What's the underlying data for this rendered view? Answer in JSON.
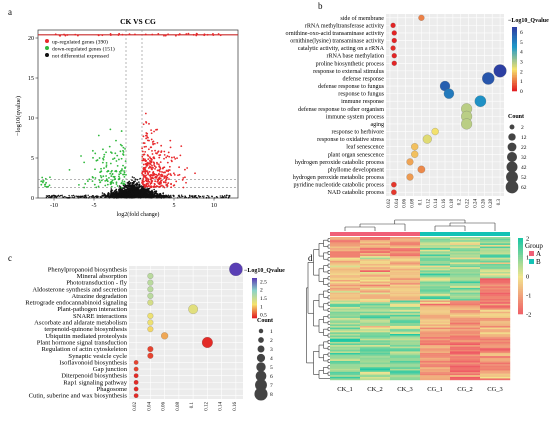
{
  "panel_labels": {
    "a": "a",
    "b": "b",
    "c": "c",
    "d": "d"
  },
  "colors": {
    "up": "#e8282b",
    "down": "#2fb83c",
    "ns": "#111111",
    "low": "#e1121e",
    "mid": "#f5e26b",
    "high_b": "#2c3fa3",
    "high_c": "#5a3fb5",
    "mid_c": "#8ad3c8",
    "heat_low": "#ef5b65",
    "heat_mid": "#f2e58e",
    "heat_high": "#1bc7a5",
    "group_a": "#f05f77",
    "group_b": "#13c2b5"
  },
  "chart_data": [
    {
      "id": "a",
      "type": "scatter",
      "title": "CK VS CG",
      "xlabel": "log2(fold change)",
      "ylabel": "−log10(qvalue)",
      "xlim": [
        -12,
        13
      ],
      "ylim": [
        0,
        21
      ],
      "xticks": [
        -10,
        -5,
        5,
        10
      ],
      "yticks": [
        0,
        5,
        10,
        15,
        20
      ],
      "thresholds": {
        "x": [
          -1,
          1
        ],
        "y": [
          1.3
        ]
      },
      "legend": [
        "up-regulated genes (390)",
        "down-regulated genes (151)",
        "not differential expressed"
      ],
      "series": [
        {
          "name": "up-regulated genes (390)",
          "count": 390
        },
        {
          "name": "down-regulated genes (151)",
          "count": 151
        },
        {
          "name": "not differential expressed"
        }
      ]
    },
    {
      "id": "b",
      "type": "scatter",
      "xlabel": "",
      "xticks": [
        0.02,
        0.04,
        0.06,
        0.08,
        0.1,
        0.12,
        0.14,
        0.16,
        0.18,
        0.2,
        0.22,
        0.24,
        0.26,
        0.28,
        0.3
      ],
      "xlim": [
        0.01,
        0.31
      ],
      "legend_color_title": "−Log10_Qvalue",
      "color_ticks": [
        0,
        1,
        2,
        3,
        4,
        5,
        6
      ],
      "color_range": [
        0,
        6.5
      ],
      "legend_size_title": "Count",
      "size_ticks": [
        2,
        12,
        22,
        32,
        42,
        52,
        62
      ],
      "categories": [
        "side of membrane",
        "rRNA methyltransferase activity",
        "ornithine-oxo-acid transaminase activity",
        "ornithine(lysine) transaminase activity",
        "catalytic activity, acting on a rRNA",
        "rRNA base methylation",
        "proline biosynthetic process",
        "response to external stimulus",
        "defense response",
        "defense response to fungus",
        "response to fungus",
        "immune response",
        "defense response to other organism",
        "immune system process",
        "aging",
        "response to herbivore",
        "response to oxidative stress",
        "leaf senescence",
        "plant organ senescence",
        "hydrogen peroxide catabolic process",
        "phyllome development",
        "hydrogen peroxide metabolic process",
        "pyridine nucleotide catabolic process",
        "NAD catabolic process"
      ],
      "points": [
        {
          "label": "side of membrane",
          "x": 0.1,
          "qvalue": 1.2,
          "count": 5
        },
        {
          "label": "rRNA methyltransferase activity",
          "x": 0.028,
          "qvalue": 0.2,
          "count": 2
        },
        {
          "label": "ornithine-oxo-acid transaminase activity",
          "x": 0.031,
          "qvalue": 0.2,
          "count": 2
        },
        {
          "label": "ornithine(lysine) transaminase activity",
          "x": 0.031,
          "qvalue": 0.2,
          "count": 2
        },
        {
          "label": "catalytic activity, acting on a rRNA",
          "x": 0.028,
          "qvalue": 0.3,
          "count": 2
        },
        {
          "label": "rRNA base methylation",
          "x": 0.031,
          "qvalue": 0.2,
          "count": 2
        },
        {
          "label": "proline biosynthetic process",
          "x": 0.031,
          "qvalue": 0.2,
          "count": 2
        },
        {
          "label": "response to external stimulus",
          "x": 0.3,
          "qvalue": 6.6,
          "count": 62
        },
        {
          "label": "defense response",
          "x": 0.27,
          "qvalue": 6.0,
          "count": 55
        },
        {
          "label": "defense response to fungus",
          "x": 0.16,
          "qvalue": 5.8,
          "count": 32
        },
        {
          "label": "response to fungus",
          "x": 0.17,
          "qvalue": 5.2,
          "count": 33
        },
        {
          "label": "immune response",
          "x": 0.25,
          "qvalue": 4.7,
          "count": 45
        },
        {
          "label": "defense response to other organism",
          "x": 0.215,
          "qvalue": 2.9,
          "count": 40
        },
        {
          "label": "immune system process",
          "x": 0.215,
          "qvalue": 2.9,
          "count": 40
        },
        {
          "label": "aging",
          "x": 0.215,
          "qvalue": 2.9,
          "count": 40
        },
        {
          "label": "response to herbivore",
          "x": 0.135,
          "qvalue": 2.3,
          "count": 10
        },
        {
          "label": "response to oxidative stress",
          "x": 0.115,
          "qvalue": 2.5,
          "count": 22
        },
        {
          "label": "leaf senescence",
          "x": 0.083,
          "qvalue": 1.9,
          "count": 10
        },
        {
          "label": "plant organ senescence",
          "x": 0.083,
          "qvalue": 1.9,
          "count": 10
        },
        {
          "label": "hydrogen peroxide catabolic process",
          "x": 0.071,
          "qvalue": 1.6,
          "count": 9
        },
        {
          "label": "phyllome development",
          "x": 0.1,
          "qvalue": 1.3,
          "count": 12
        },
        {
          "label": "hydrogen peroxide metabolic process",
          "x": 0.071,
          "qvalue": 1.5,
          "count": 9
        },
        {
          "label": "pyridine nucleotide catabolic process",
          "x": 0.03,
          "qvalue": 0.4,
          "count": 3
        },
        {
          "label": "NAD catabolic process",
          "x": 0.03,
          "qvalue": 0.4,
          "count": 3
        }
      ]
    },
    {
      "id": "c",
      "type": "scatter",
      "xlabel": "",
      "xticks": [
        0.02,
        0.04,
        0.06,
        0.08,
        0.1,
        0.12,
        0.14,
        0.16
      ],
      "xlim": [
        0.01,
        0.17
      ],
      "legend_color_title": "−Log10_Qvalue",
      "color_ticks": [
        0.5,
        1.0,
        1.5,
        2.0,
        2.5
      ],
      "color_range": [
        0.3,
        2.7
      ],
      "legend_size_title": "Count",
      "size_ticks": [
        1,
        2,
        3,
        4,
        5,
        6,
        7,
        8
      ],
      "categories": [
        "Phenylpropanoid biosynthesis",
        "Mineral absorption",
        "Phototransduction - fly",
        "Aldosterone synthesis and secretion",
        "Atrazine degradation",
        "Retrograde endocannabinoid signaling",
        "Plant-pathogen interaction",
        "SNARE interactions",
        "Ascorbate and aldarate metabolism",
        "terpenoid-quinone biosynthesis",
        "Ubiquitin mediated proteolysis",
        "Plant hormone signal transduction",
        "Regulation of actin cytoskeleton",
        "Synaptic vesicle cycle",
        "Isoflavonoid biosynthesis",
        "Gap junction",
        "Diterpenoid biosynthesis",
        "Rap1 signaling pathway",
        "Phagosome",
        "Cutin, suberine and wax biosynthesis"
      ],
      "points": [
        {
          "label": "Phenylpropanoid biosynthesis",
          "x": 0.16,
          "qvalue": 2.7,
          "count": 8
        },
        {
          "label": "Mineral absorption",
          "x": 0.04,
          "qvalue": 1.6,
          "count": 2
        },
        {
          "label": "Phototransduction - fly",
          "x": 0.04,
          "qvalue": 1.6,
          "count": 2
        },
        {
          "label": "Aldosterone synthesis and secretion",
          "x": 0.04,
          "qvalue": 1.6,
          "count": 2
        },
        {
          "label": "Atrazine degradation",
          "x": 0.04,
          "qvalue": 1.6,
          "count": 2
        },
        {
          "label": "Retrograde endocannabinoid signaling",
          "x": 0.04,
          "qvalue": 1.4,
          "count": 2
        },
        {
          "label": "Plant-pathogen interaction",
          "x": 0.1,
          "qvalue": 1.3,
          "count": 5
        },
        {
          "label": "SNARE interactions",
          "x": 0.04,
          "qvalue": 1.2,
          "count": 2
        },
        {
          "label": "Ascorbate and aldarate metabolism",
          "x": 0.04,
          "qvalue": 1.2,
          "count": 2
        },
        {
          "label": "terpenoid-quinone biosynthesis",
          "x": 0.04,
          "qvalue": 1.1,
          "count": 2
        },
        {
          "label": "Ubiquitin mediated proteolysis",
          "x": 0.06,
          "qvalue": 0.9,
          "count": 3
        },
        {
          "label": "Plant hormone signal transduction",
          "x": 0.12,
          "qvalue": 0.4,
          "count": 6
        },
        {
          "label": "Regulation of actin cytoskeleton",
          "x": 0.04,
          "qvalue": 0.5,
          "count": 2
        },
        {
          "label": "Synaptic vesicle cycle",
          "x": 0.04,
          "qvalue": 0.5,
          "count": 2
        },
        {
          "label": "Isoflavonoid biosynthesis",
          "x": 0.02,
          "qvalue": 0.5,
          "count": 1
        },
        {
          "label": "Gap junction",
          "x": 0.02,
          "qvalue": 0.5,
          "count": 1
        },
        {
          "label": "Diterpenoid biosynthesis",
          "x": 0.02,
          "qvalue": 0.4,
          "count": 1
        },
        {
          "label": "Rap1 signaling pathway",
          "x": 0.02,
          "qvalue": 0.4,
          "count": 1
        },
        {
          "label": "Phagosome",
          "x": 0.02,
          "qvalue": 0.4,
          "count": 1
        },
        {
          "label": "Cutin, suberine and wax biosynthesis",
          "x": 0.02,
          "qvalue": 0.4,
          "count": 1
        }
      ]
    },
    {
      "id": "d",
      "type": "heatmap",
      "columns": [
        "CK_1",
        "CK_2",
        "CK_3",
        "CG_1",
        "CG_2",
        "CG_3"
      ],
      "groups": [
        "A",
        "A",
        "A",
        "B",
        "B",
        "B"
      ],
      "legend_group_title": "Group",
      "legend_group_labels": [
        "A",
        "B"
      ],
      "color_ticks": [
        2,
        1,
        0,
        -1,
        -2
      ],
      "color_range": [
        -2,
        2
      ]
    }
  ]
}
